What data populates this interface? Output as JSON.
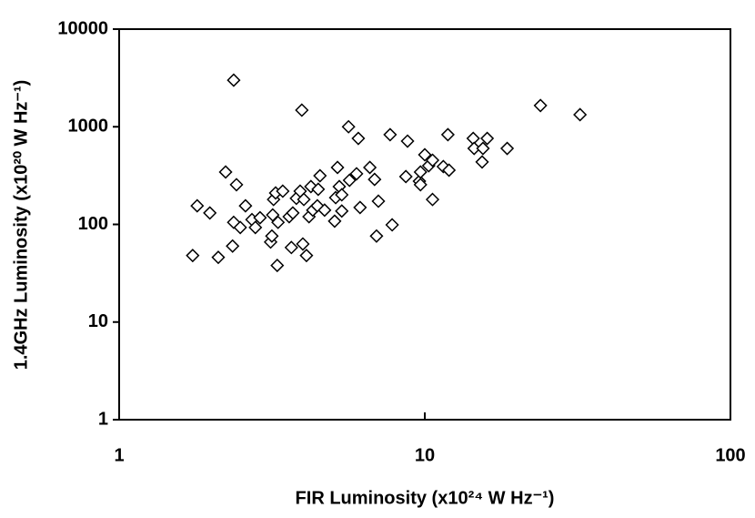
{
  "chart_data": {
    "type": "scatter",
    "x_label": "FIR Luminosity (x10²⁴ W Hz⁻¹)",
    "y_label": "1.4GHz Luminosity (x10²⁰ W Hz⁻¹)",
    "x": [
      1.74,
      1.8,
      1.98,
      2.11,
      2.23,
      2.37,
      2.35,
      2.37,
      2.42,
      2.49,
      2.59,
      2.72,
      2.79,
      2.89,
      3.13,
      3.18,
      3.16,
      3.2,
      3.25,
      3.29,
      3.31,
      3.43,
      3.6,
      3.66,
      3.7,
      3.8,
      3.91,
      3.96,
      3.99,
      4.02,
      4.1,
      4.18,
      4.24,
      4.3,
      4.45,
      4.48,
      4.54,
      4.7,
      5.07,
      5.11,
      5.18,
      5.25,
      5.35,
      5.35,
      5.63,
      5.67,
      5.98,
      6.06,
      6.14,
      6.61,
      6.85,
      6.95,
      7.05,
      7.7,
      7.82,
      8.67,
      8.78,
      9.6,
      9.68,
      9.68,
      10.0,
      10.3,
      10.6,
      10.6,
      11.5,
      11.9,
      12.0,
      14.4,
      14.5,
      15.4,
      15.5,
      16.0,
      18.6,
      23.9,
      32.2
    ],
    "values": [
      48,
      155,
      131,
      46,
      344,
      3000,
      60,
      105,
      255,
      93,
      155,
      112,
      93,
      117,
      66,
      125,
      76,
      180,
      210,
      38,
      105,
      219,
      120,
      58,
      131,
      185,
      219,
      1480,
      63,
      180,
      48,
      120,
      244,
      140,
      155,
      229,
      315,
      140,
      108,
      188,
      383,
      244,
      201,
      137,
      1000,
      283,
      330,
      760,
      149,
      383,
      289,
      76,
      173,
      830,
      99,
      309,
      713,
      277,
      255,
      344,
      517,
      399,
      180,
      454,
      391,
      830,
      359,
      760,
      600,
      436,
      600,
      760,
      600,
      1650,
      1330
    ],
    "color": "#000000",
    "marker": "diamond",
    "xscale": "log",
    "yscale": "log",
    "xlim": [
      1,
      100
    ],
    "xticks": [
      1,
      10,
      100
    ],
    "ylim": [
      1,
      10000
    ],
    "yticks": [
      1,
      10,
      100,
      1000,
      10000
    ]
  }
}
